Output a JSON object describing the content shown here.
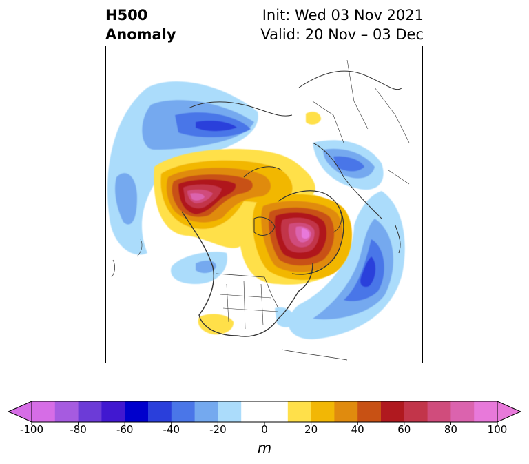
{
  "title": {
    "left_line1": "H500",
    "left_line2": "Anomaly",
    "right_line1": "Init: Wed 03 Nov 2021",
    "right_line2": "Valid: 20 Nov – 03 Dec"
  },
  "map": {
    "projection": "polar stereographic (North America / North Atlantic)",
    "field": "500 hPa geopotential height anomaly",
    "features": [
      {
        "name": "ridge-alaska-western-canada",
        "sign": "positive",
        "peak": 100
      },
      {
        "name": "ridge-greenland-baffin",
        "sign": "positive",
        "peak": 100
      },
      {
        "name": "ridge-northern-plains-hudson",
        "sign": "positive",
        "peak": 40
      },
      {
        "name": "ridge-southwest-us",
        "sign": "positive",
        "peak": 20
      },
      {
        "name": "ridge-scandinavia",
        "sign": "positive",
        "peak": 20
      },
      {
        "name": "trough-north-atlantic",
        "sign": "negative",
        "peak": -70
      },
      {
        "name": "trough-siberia-arctic",
        "sign": "negative",
        "peak": -50
      },
      {
        "name": "trough-central-pacific",
        "sign": "negative",
        "peak": -40
      },
      {
        "name": "trough-northeast-pacific",
        "sign": "negative",
        "peak": -30
      },
      {
        "name": "trough-southeast-us",
        "sign": "negative",
        "peak": -20
      }
    ]
  },
  "colorbar": {
    "units": "m",
    "levels": [
      -100,
      -90,
      -80,
      -70,
      -60,
      -50,
      -40,
      -30,
      -20,
      -10,
      10,
      20,
      30,
      40,
      50,
      60,
      70,
      80,
      90,
      100
    ],
    "colors": [
      "#d66de6",
      "#a65be0",
      "#6c3bd7",
      "#4118d0",
      "#0000cc",
      "#2a3fdb",
      "#4a76e8",
      "#74a9ef",
      "#abdcfb",
      "#ffffff",
      "#ffe04a",
      "#f2b705",
      "#e08b0e",
      "#c85114",
      "#b0191f",
      "#c2354a",
      "#d04c7c",
      "#db63ae",
      "#e879da"
    ],
    "over_color": "#e879da",
    "under_color": "#d66de6",
    "tick_labels": [
      "-100",
      "-80",
      "-60",
      "-40",
      "-20",
      "0",
      "20",
      "40",
      "60",
      "80",
      "100"
    ]
  }
}
